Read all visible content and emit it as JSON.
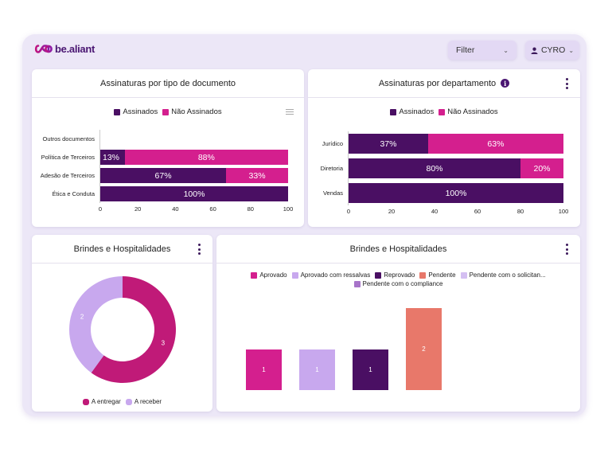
{
  "app": {
    "logo_text": "be.aliant",
    "filter_label": "Filter",
    "user_label": "CYRO"
  },
  "cards": {
    "tipo_documento": {
      "title": "Assinaturas por tipo de documento",
      "legend": [
        "Assinados",
        "Não Assinados"
      ],
      "menu_icon": "hamburger-menu-icon"
    },
    "departamento": {
      "title": "Assinaturas por departamento",
      "info_icon": "i",
      "legend": [
        "Assinados",
        "Não Assinados"
      ]
    },
    "brindes_donut": {
      "title": "Brindes e Hospitalidades",
      "legend": [
        "A entregar",
        "A receber"
      ]
    },
    "brindes_bar": {
      "title": "Brindes e Hospitalidades",
      "legend": [
        "Aprovado",
        "Aprovado com ressalvas",
        "Reprovado",
        "Pendente",
        "Pendente com o solicitan...",
        "Pendente com o compliance"
      ]
    }
  },
  "colors": {
    "assinados": "#4a0f63",
    "nao_assinados": "#d41f8e",
    "a_entregar": "#c01a78",
    "a_receber": "#c8a8ee",
    "aprovado": "#d41f8e",
    "aprovado_ressalvas": "#c8a8ee",
    "reprovado": "#4a0f63",
    "pendente": "#e8786a",
    "pendente_solicitante": "#d4bff2",
    "pendente_compliance": "#a774c9"
  },
  "chart_data": [
    {
      "type": "bar",
      "orientation": "horizontal",
      "stacked": true,
      "title": "Assinaturas por tipo de documento",
      "categories": [
        "Outros documentos",
        "Política de Terceiros",
        "Adesão de Terceiros",
        "Ética e Conduta"
      ],
      "series": [
        {
          "name": "Assinados",
          "values": [
            0,
            13,
            67,
            100
          ],
          "labels": [
            "",
            "13%",
            "67%",
            "100%"
          ]
        },
        {
          "name": "Não Assinados",
          "values": [
            0,
            88,
            33,
            0
          ],
          "labels": [
            "",
            "88%",
            "33%",
            ""
          ]
        }
      ],
      "xticks": [
        "0",
        "20",
        "40",
        "60",
        "80",
        "100"
      ],
      "xlim": [
        0,
        100
      ],
      "legend": "top"
    },
    {
      "type": "bar",
      "orientation": "horizontal",
      "stacked": true,
      "title": "Assinaturas por departamento",
      "categories": [
        "Jurídico",
        "Diretoria",
        "Vendas"
      ],
      "series": [
        {
          "name": "Assinados",
          "values": [
            37,
            80,
            100
          ],
          "labels": [
            "37%",
            "80%",
            "100%"
          ]
        },
        {
          "name": "Não Assinados",
          "values": [
            63,
            20,
            0
          ],
          "labels": [
            "63%",
            "20%",
            ""
          ]
        }
      ],
      "xticks": [
        "0",
        "20",
        "40",
        "60",
        "80",
        "100"
      ],
      "xlim": [
        0,
        100
      ],
      "legend": "top"
    },
    {
      "type": "pie",
      "donut": true,
      "title": "Brindes e Hospitalidades",
      "slices": [
        {
          "name": "A entregar",
          "value": 3
        },
        {
          "name": "A receber",
          "value": 2
        }
      ],
      "legend": "bottom"
    },
    {
      "type": "bar",
      "title": "Brindes e Hospitalidades",
      "categories": [
        "Aprovado",
        "Aprovado com ressalvas",
        "Reprovado",
        "Pendente"
      ],
      "values": [
        1,
        1,
        1,
        2
      ],
      "labels": [
        "1",
        "1",
        "1",
        "2"
      ],
      "legend_entries": [
        "Aprovado",
        "Aprovado com ressalvas",
        "Reprovado",
        "Pendente",
        "Pendente com o solicitan...",
        "Pendente com o compliance"
      ],
      "ylim": [
        0,
        2
      ],
      "legend": "top"
    }
  ]
}
